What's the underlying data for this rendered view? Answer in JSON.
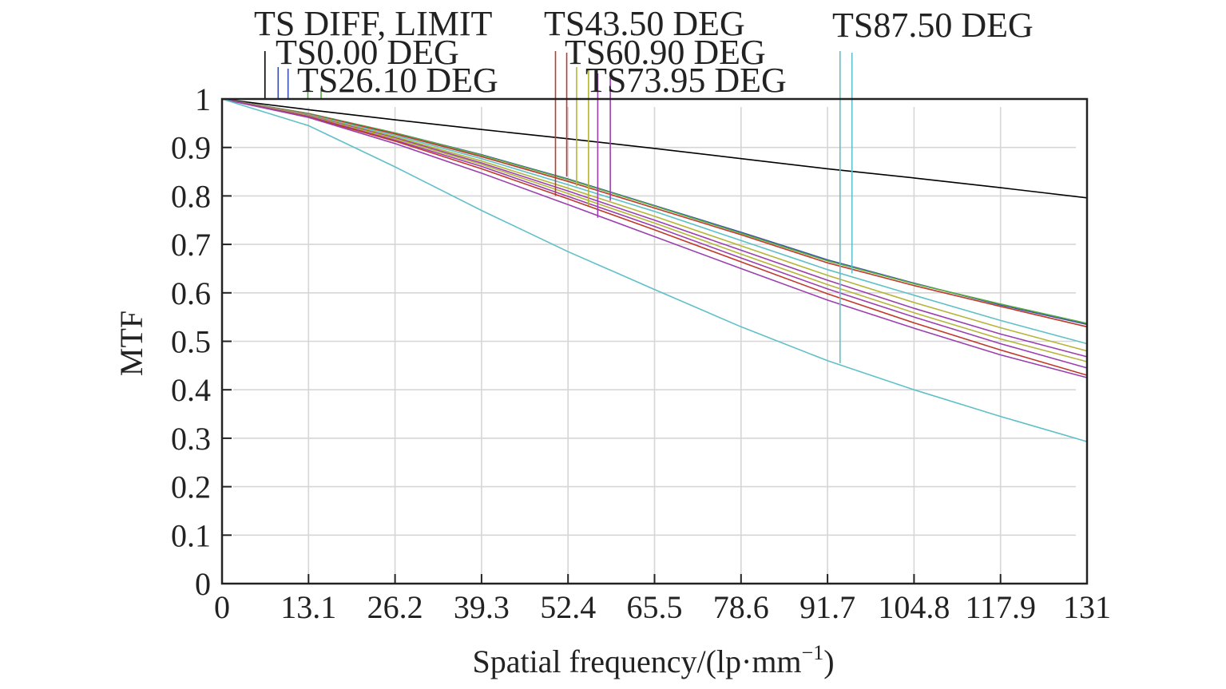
{
  "chart_data": {
    "type": "line",
    "title": "",
    "xlabel": "Spatial frequency/(lp·mm",
    "xlabel_superscript": "−1",
    "xlabel_suffix": ")",
    "ylabel": "MTF",
    "xlim": [
      0,
      131
    ],
    "ylim": [
      0,
      1
    ],
    "grid": true,
    "xticks": [
      0,
      13.1,
      26.2,
      39.3,
      52.4,
      65.5,
      78.6,
      91.7,
      104.8,
      117.9,
      131
    ],
    "xtick_labels": [
      "0",
      "13.1",
      "26.2",
      "39.3",
      "52.4",
      "65.5",
      "78.6",
      "91.7",
      "104.8",
      "117.9",
      "131"
    ],
    "yticks": [
      0,
      0.1,
      0.2,
      0.3,
      0.4,
      0.5,
      0.6,
      0.7,
      0.8,
      0.9,
      1
    ],
    "ytick_labels": [
      "0",
      "0.1",
      "0.2",
      "0.3",
      "0.4",
      "0.5",
      "0.6",
      "0.7",
      "0.8",
      "0.9",
      "1"
    ],
    "legend_entries": [
      {
        "label": "TS DIFF, LIMIT",
        "color": "#000000",
        "markers": [
          {
            "x": 6.5,
            "y": 1.0
          }
        ]
      },
      {
        "label": "TS0.00 DEG",
        "color": "#3a4fa8",
        "markers": [
          {
            "x": 8.5,
            "y": 1.0
          },
          {
            "x": 10.0,
            "y": 1.0
          }
        ]
      },
      {
        "label": "TS26.10 DEG",
        "color": "#55aa44",
        "markers": [
          {
            "x": 13.0,
            "y": 1.0
          },
          {
            "x": 15.0,
            "y": 1.0
          }
        ]
      },
      {
        "label": "TS43.50 DEG",
        "color": "#c0392b",
        "markers": [
          {
            "x": 50.5,
            "y": 0.8
          },
          {
            "x": 52.2,
            "y": 0.84
          }
        ]
      },
      {
        "label": "TS60.90 DEG",
        "color": "#b5b53a",
        "markers": [
          {
            "x": 53.7,
            "y": 0.82
          },
          {
            "x": 55.5,
            "y": 0.78
          }
        ]
      },
      {
        "label": "TS73.95 DEG",
        "color": "#9b3fb0",
        "markers": [
          {
            "x": 56.9,
            "y": 0.755
          },
          {
            "x": 58.8,
            "y": 0.79
          }
        ]
      },
      {
        "label": "TS87.50 DEG",
        "color": "#5fc0c8",
        "markers": [
          {
            "x": 93.6,
            "y": 0.455
          },
          {
            "x": 95.4,
            "y": 0.64
          }
        ]
      }
    ],
    "series": [
      {
        "color": "#000000",
        "x": [
          0,
          13.1,
          26.2,
          39.3,
          52.4,
          65.5,
          78.6,
          91.7,
          104.8,
          117.9,
          131
        ],
        "y": [
          1.0,
          0.978,
          0.957,
          0.937,
          0.918,
          0.898,
          0.877,
          0.856,
          0.837,
          0.817,
          0.796
        ]
      },
      {
        "color": "#3a4fa8",
        "x": [
          0,
          13.1,
          26.2,
          39.3,
          52.4,
          65.5,
          78.6,
          91.7,
          104.8,
          117.9,
          131
        ],
        "y": [
          1.0,
          0.97,
          0.93,
          0.885,
          0.835,
          0.78,
          0.725,
          0.668,
          0.62,
          0.575,
          0.535
        ]
      },
      {
        "color": "#55aa44",
        "x": [
          0,
          13.1,
          26.2,
          39.3,
          52.4,
          65.5,
          78.6,
          91.7,
          104.8,
          117.9,
          131
        ],
        "y": [
          1.0,
          0.97,
          0.93,
          0.884,
          0.834,
          0.779,
          0.723,
          0.666,
          0.619,
          0.577,
          0.537
        ]
      },
      {
        "color": "#c0392b",
        "x": [
          0,
          13.1,
          26.2,
          39.3,
          52.4,
          65.5,
          78.6,
          91.7,
          104.8,
          117.9,
          131
        ],
        "y": [
          1.0,
          0.969,
          0.928,
          0.881,
          0.83,
          0.775,
          0.72,
          0.662,
          0.615,
          0.572,
          0.53
        ]
      },
      {
        "color": "#5fc0c8",
        "x": [
          0,
          13.1,
          26.2,
          39.3,
          52.4,
          65.5,
          78.6,
          91.7,
          104.8,
          117.9,
          131
        ],
        "y": [
          1.0,
          0.968,
          0.925,
          0.877,
          0.823,
          0.768,
          0.708,
          0.648,
          0.595,
          0.543,
          0.495
        ]
      },
      {
        "color": "#b5b53a",
        "x": [
          0,
          13.1,
          26.2,
          39.3,
          52.4,
          65.5,
          78.6,
          91.7,
          104.8,
          117.9,
          131
        ],
        "y": [
          1.0,
          0.967,
          0.922,
          0.872,
          0.816,
          0.758,
          0.697,
          0.636,
          0.58,
          0.528,
          0.48
        ]
      },
      {
        "color": "#9b3fb0",
        "x": [
          0,
          13.1,
          26.2,
          39.3,
          52.4,
          65.5,
          78.6,
          91.7,
          104.8,
          117.9,
          131
        ],
        "y": [
          1.0,
          0.966,
          0.92,
          0.868,
          0.81,
          0.75,
          0.688,
          0.626,
          0.568,
          0.515,
          0.468
        ]
      },
      {
        "color": "#b5b53a",
        "x": [
          0,
          13.1,
          26.2,
          39.3,
          52.4,
          65.5,
          78.6,
          91.7,
          104.8,
          117.9,
          131
        ],
        "y": [
          1.0,
          0.965,
          0.918,
          0.865,
          0.805,
          0.744,
          0.68,
          0.617,
          0.559,
          0.505,
          0.458
        ]
      },
      {
        "color": "#9b3fb0",
        "x": [
          0,
          13.1,
          26.2,
          39.3,
          52.4,
          65.5,
          78.6,
          91.7,
          104.8,
          117.9,
          131
        ],
        "y": [
          1.0,
          0.964,
          0.915,
          0.861,
          0.799,
          0.737,
          0.672,
          0.608,
          0.55,
          0.495,
          0.445
        ]
      },
      {
        "color": "#c0392b",
        "x": [
          0,
          13.1,
          26.2,
          39.3,
          52.4,
          65.5,
          78.6,
          91.7,
          104.8,
          117.9,
          131
        ],
        "y": [
          1.0,
          0.963,
          0.913,
          0.856,
          0.794,
          0.73,
          0.664,
          0.598,
          0.538,
          0.482,
          0.43
        ]
      },
      {
        "color": "#9b3fb0",
        "x": [
          0,
          13.1,
          26.2,
          39.3,
          52.4,
          65.5,
          78.6,
          91.7,
          104.8,
          117.9,
          131
        ],
        "y": [
          1.0,
          0.962,
          0.908,
          0.847,
          0.782,
          0.716,
          0.65,
          0.585,
          0.527,
          0.472,
          0.425
        ]
      },
      {
        "color": "#5fc0c8",
        "x": [
          0,
          13.1,
          26.2,
          39.3,
          52.4,
          65.5,
          78.6,
          91.7,
          104.8,
          117.9,
          131
        ],
        "y": [
          1.0,
          0.945,
          0.86,
          0.77,
          0.685,
          0.607,
          0.53,
          0.46,
          0.4,
          0.345,
          0.293
        ]
      }
    ]
  }
}
